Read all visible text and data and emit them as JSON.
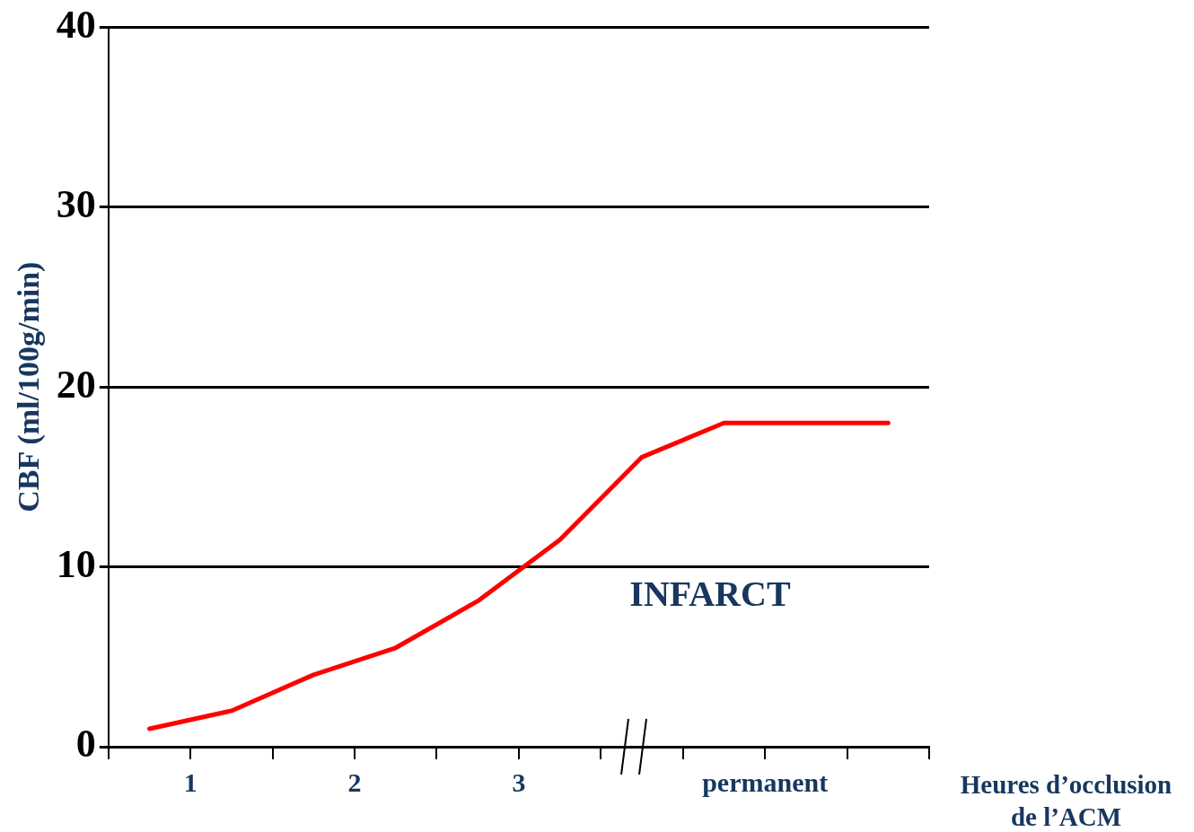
{
  "chart_data": {
    "type": "line",
    "ylabel": "CBF (ml/100g/min)",
    "xlabel": "Heures d’occlusion de l’ACM",
    "annotations": [
      "INFARCT"
    ],
    "x": [
      0.75,
      1.25,
      1.75,
      2.25,
      2.75,
      3.25,
      3.75,
      4.25,
      4.75,
      5.25
    ],
    "series": [
      {
        "color": "#ff0000",
        "values": [
          1,
          2,
          4,
          5.5,
          8.1,
          11.5,
          16.1,
          18,
          18,
          18
        ]
      }
    ],
    "xlim": [
      0.5,
      5.5
    ],
    "xticks": [
      {
        "value": 0.5,
        "label": null
      },
      1,
      {
        "value": 1.5,
        "label": null
      },
      2,
      {
        "value": 2.5,
        "label": null
      },
      3,
      {
        "value": 3.5,
        "label": null
      },
      {
        "value": 4,
        "label": null
      },
      {
        "value": 4.5,
        "label": "permanent"
      },
      {
        "value": 5,
        "label": null
      },
      {
        "value": 5.5,
        "label": null
      }
    ],
    "ylim": [
      0,
      40
    ],
    "yticks": [
      0,
      10,
      20,
      30,
      40
    ],
    "grid": "y",
    "legend": false,
    "marker": "none",
    "line_style": "solid"
  }
}
